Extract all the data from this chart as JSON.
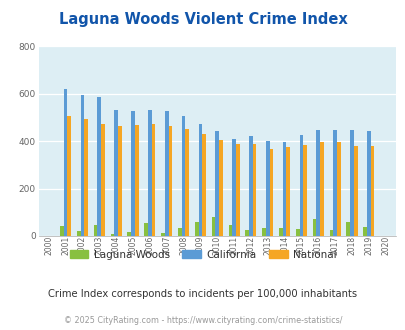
{
  "title": "Laguna Woods Violent Crime Index",
  "subtitle": "Crime Index corresponds to incidents per 100,000 inhabitants",
  "footer": "© 2025 CityRating.com - https://www.cityrating.com/crime-statistics/",
  "years": [
    "2000",
    "2001",
    "2002",
    "2003",
    "2004",
    "2005",
    "2006",
    "2007",
    "2008",
    "2009",
    "2010",
    "2011",
    "2012",
    "2013",
    "2014",
    "2015",
    "2016",
    "2017",
    "2018",
    "2019",
    "2020"
  ],
  "laguna_woods": [
    0,
    40,
    20,
    48,
    8,
    18,
    55,
    13,
    33,
    60,
    82,
    45,
    25,
    32,
    35,
    28,
    70,
    25,
    60,
    38,
    0
  ],
  "california": [
    0,
    618,
    595,
    585,
    533,
    528,
    533,
    528,
    506,
    473,
    443,
    410,
    422,
    400,
    398,
    426,
    448,
    448,
    448,
    444,
    0
  ],
  "national": [
    0,
    506,
    494,
    474,
    464,
    466,
    472,
    462,
    452,
    429,
    403,
    387,
    387,
    367,
    375,
    383,
    397,
    394,
    381,
    379,
    0
  ],
  "ylim": [
    0,
    800
  ],
  "yticks": [
    0,
    200,
    400,
    600,
    800
  ],
  "bar_width": 0.22,
  "color_lw": "#88c040",
  "color_ca": "#5b9bd5",
  "color_nat": "#f5a623",
  "plot_bg": "#ddeef4",
  "title_color": "#1155aa",
  "subtitle_color": "#333333",
  "footer_color": "#999999",
  "grid_color": "#ffffff",
  "legend_labels": [
    "Laguna Woods",
    "California",
    "National"
  ],
  "legend_text_color": "#333333"
}
